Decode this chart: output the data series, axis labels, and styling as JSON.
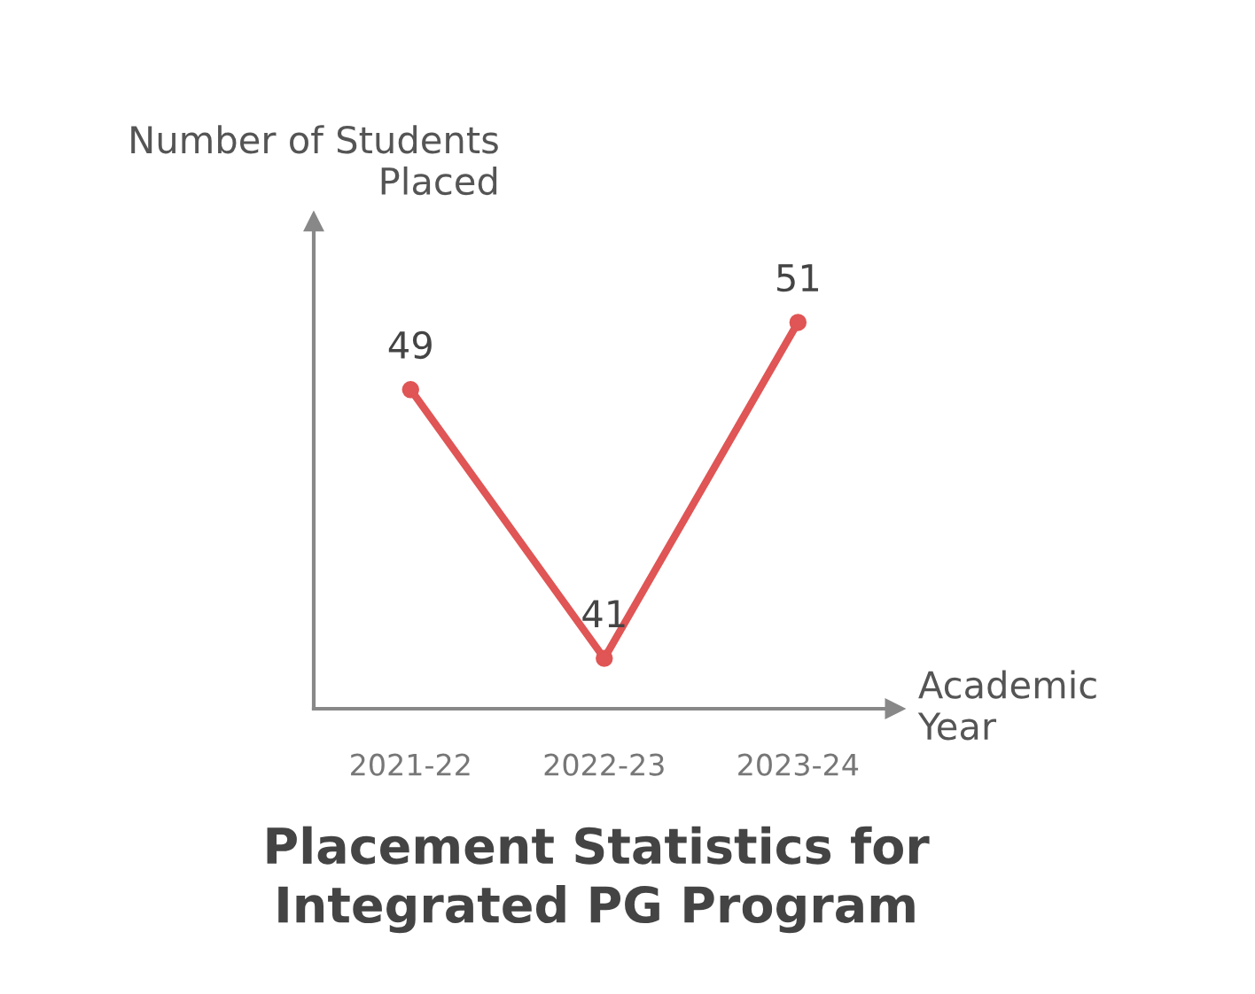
{
  "chart_data": {
    "type": "line",
    "title": "Placement Statistics for\nIntegrated PG Program",
    "xlabel": "Academic\nYear",
    "ylabel": "Number of Students\nPlaced",
    "categories": [
      "2021-22",
      "2022-23",
      "2023-24"
    ],
    "series": [
      {
        "color": "#e05555",
        "values": [
          49,
          41,
          51
        ]
      }
    ],
    "ylim": [
      39.5,
      54
    ],
    "tick_labels": "x",
    "marker": "circle",
    "line_style": "solid",
    "data_labels": true
  }
}
